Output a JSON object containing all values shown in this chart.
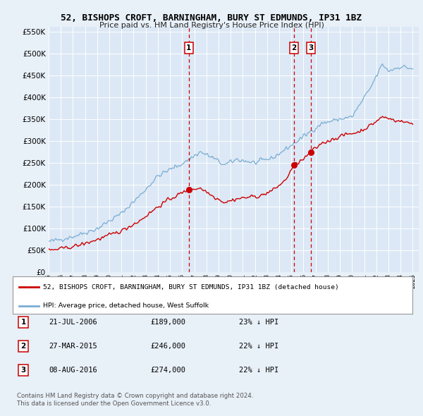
{
  "title": "52, BISHOPS CROFT, BARNINGHAM, BURY ST EDMUNDS, IP31 1BZ",
  "subtitle": "Price paid vs. HM Land Registry's House Price Index (HPI)",
  "legend_line1": "52, BISHOPS CROFT, BARNINGHAM, BURY ST EDMUNDS, IP31 1BZ (detached house)",
  "legend_line2": "HPI: Average price, detached house, West Suffolk",
  "footer1": "Contains HM Land Registry data © Crown copyright and database right 2024.",
  "footer2": "This data is licensed under the Open Government Licence v3.0.",
  "transactions": [
    {
      "num": 1,
      "date": "21-JUL-2006",
      "price": 189000,
      "hpi_note": "23% ↓ HPI",
      "x_year": 2006.55
    },
    {
      "num": 2,
      "date": "27-MAR-2015",
      "price": 246000,
      "hpi_note": "22% ↓ HPI",
      "x_year": 2015.23
    },
    {
      "num": 3,
      "date": "08-AUG-2016",
      "price": 274000,
      "hpi_note": "22% ↓ HPI",
      "x_year": 2016.6
    }
  ],
  "ylim": [
    0,
    560000
  ],
  "xlim_start": 1995.0,
  "xlim_end": 2025.5,
  "bg_color": "#e8f0f8",
  "plot_bg": "#dce8f5",
  "red_line_color": "#cc0000",
  "blue_line_color": "#7aadd4",
  "grid_color": "#ffffff",
  "vline_color": "#cc0000"
}
